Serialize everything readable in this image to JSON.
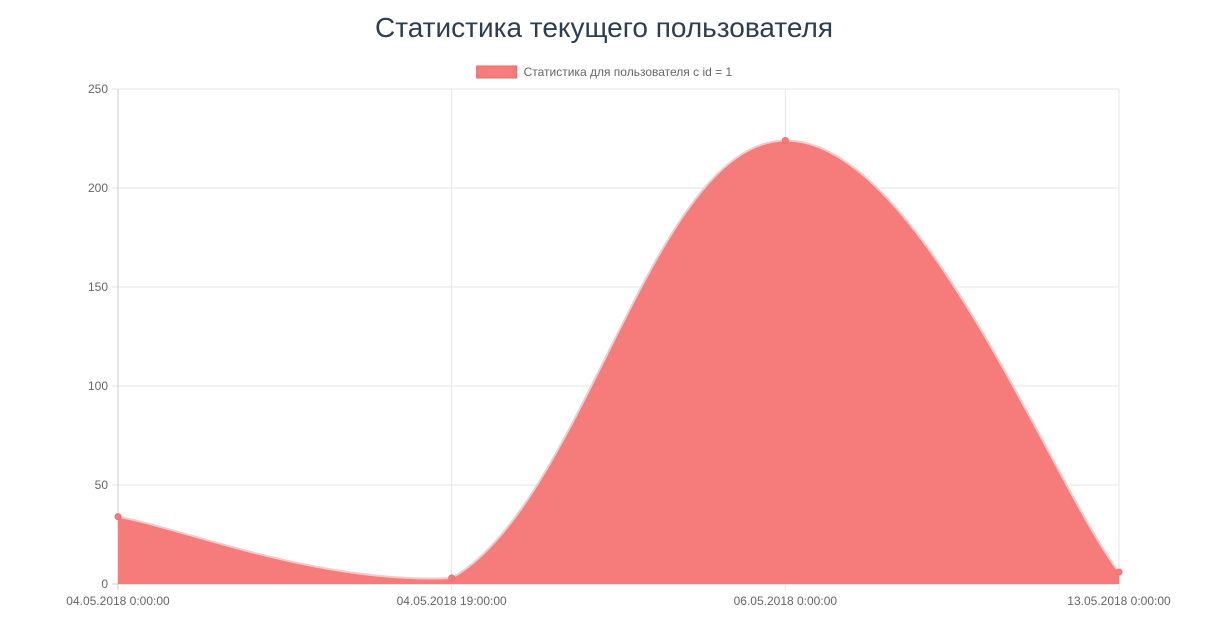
{
  "page": {
    "title": "Статистика текущего пользователя"
  },
  "chart_data": {
    "type": "area",
    "title": "Статистика текущего пользователя",
    "x": [
      "04.05.2018 0:00:00",
      "04.05.2018 19:00:00",
      "06.05.2018 0:00:00",
      "13.05.2018 0:00:00"
    ],
    "series": [
      {
        "name": "Статистика для пользователя с id = 1",
        "values": [
          34,
          3,
          224,
          6
        ],
        "color": "#f67c7b"
      }
    ],
    "ylim": [
      0,
      250
    ],
    "yticks": [
      0,
      50,
      100,
      150,
      200,
      250
    ],
    "grid": true,
    "legend": "top-center",
    "smooth": true
  }
}
